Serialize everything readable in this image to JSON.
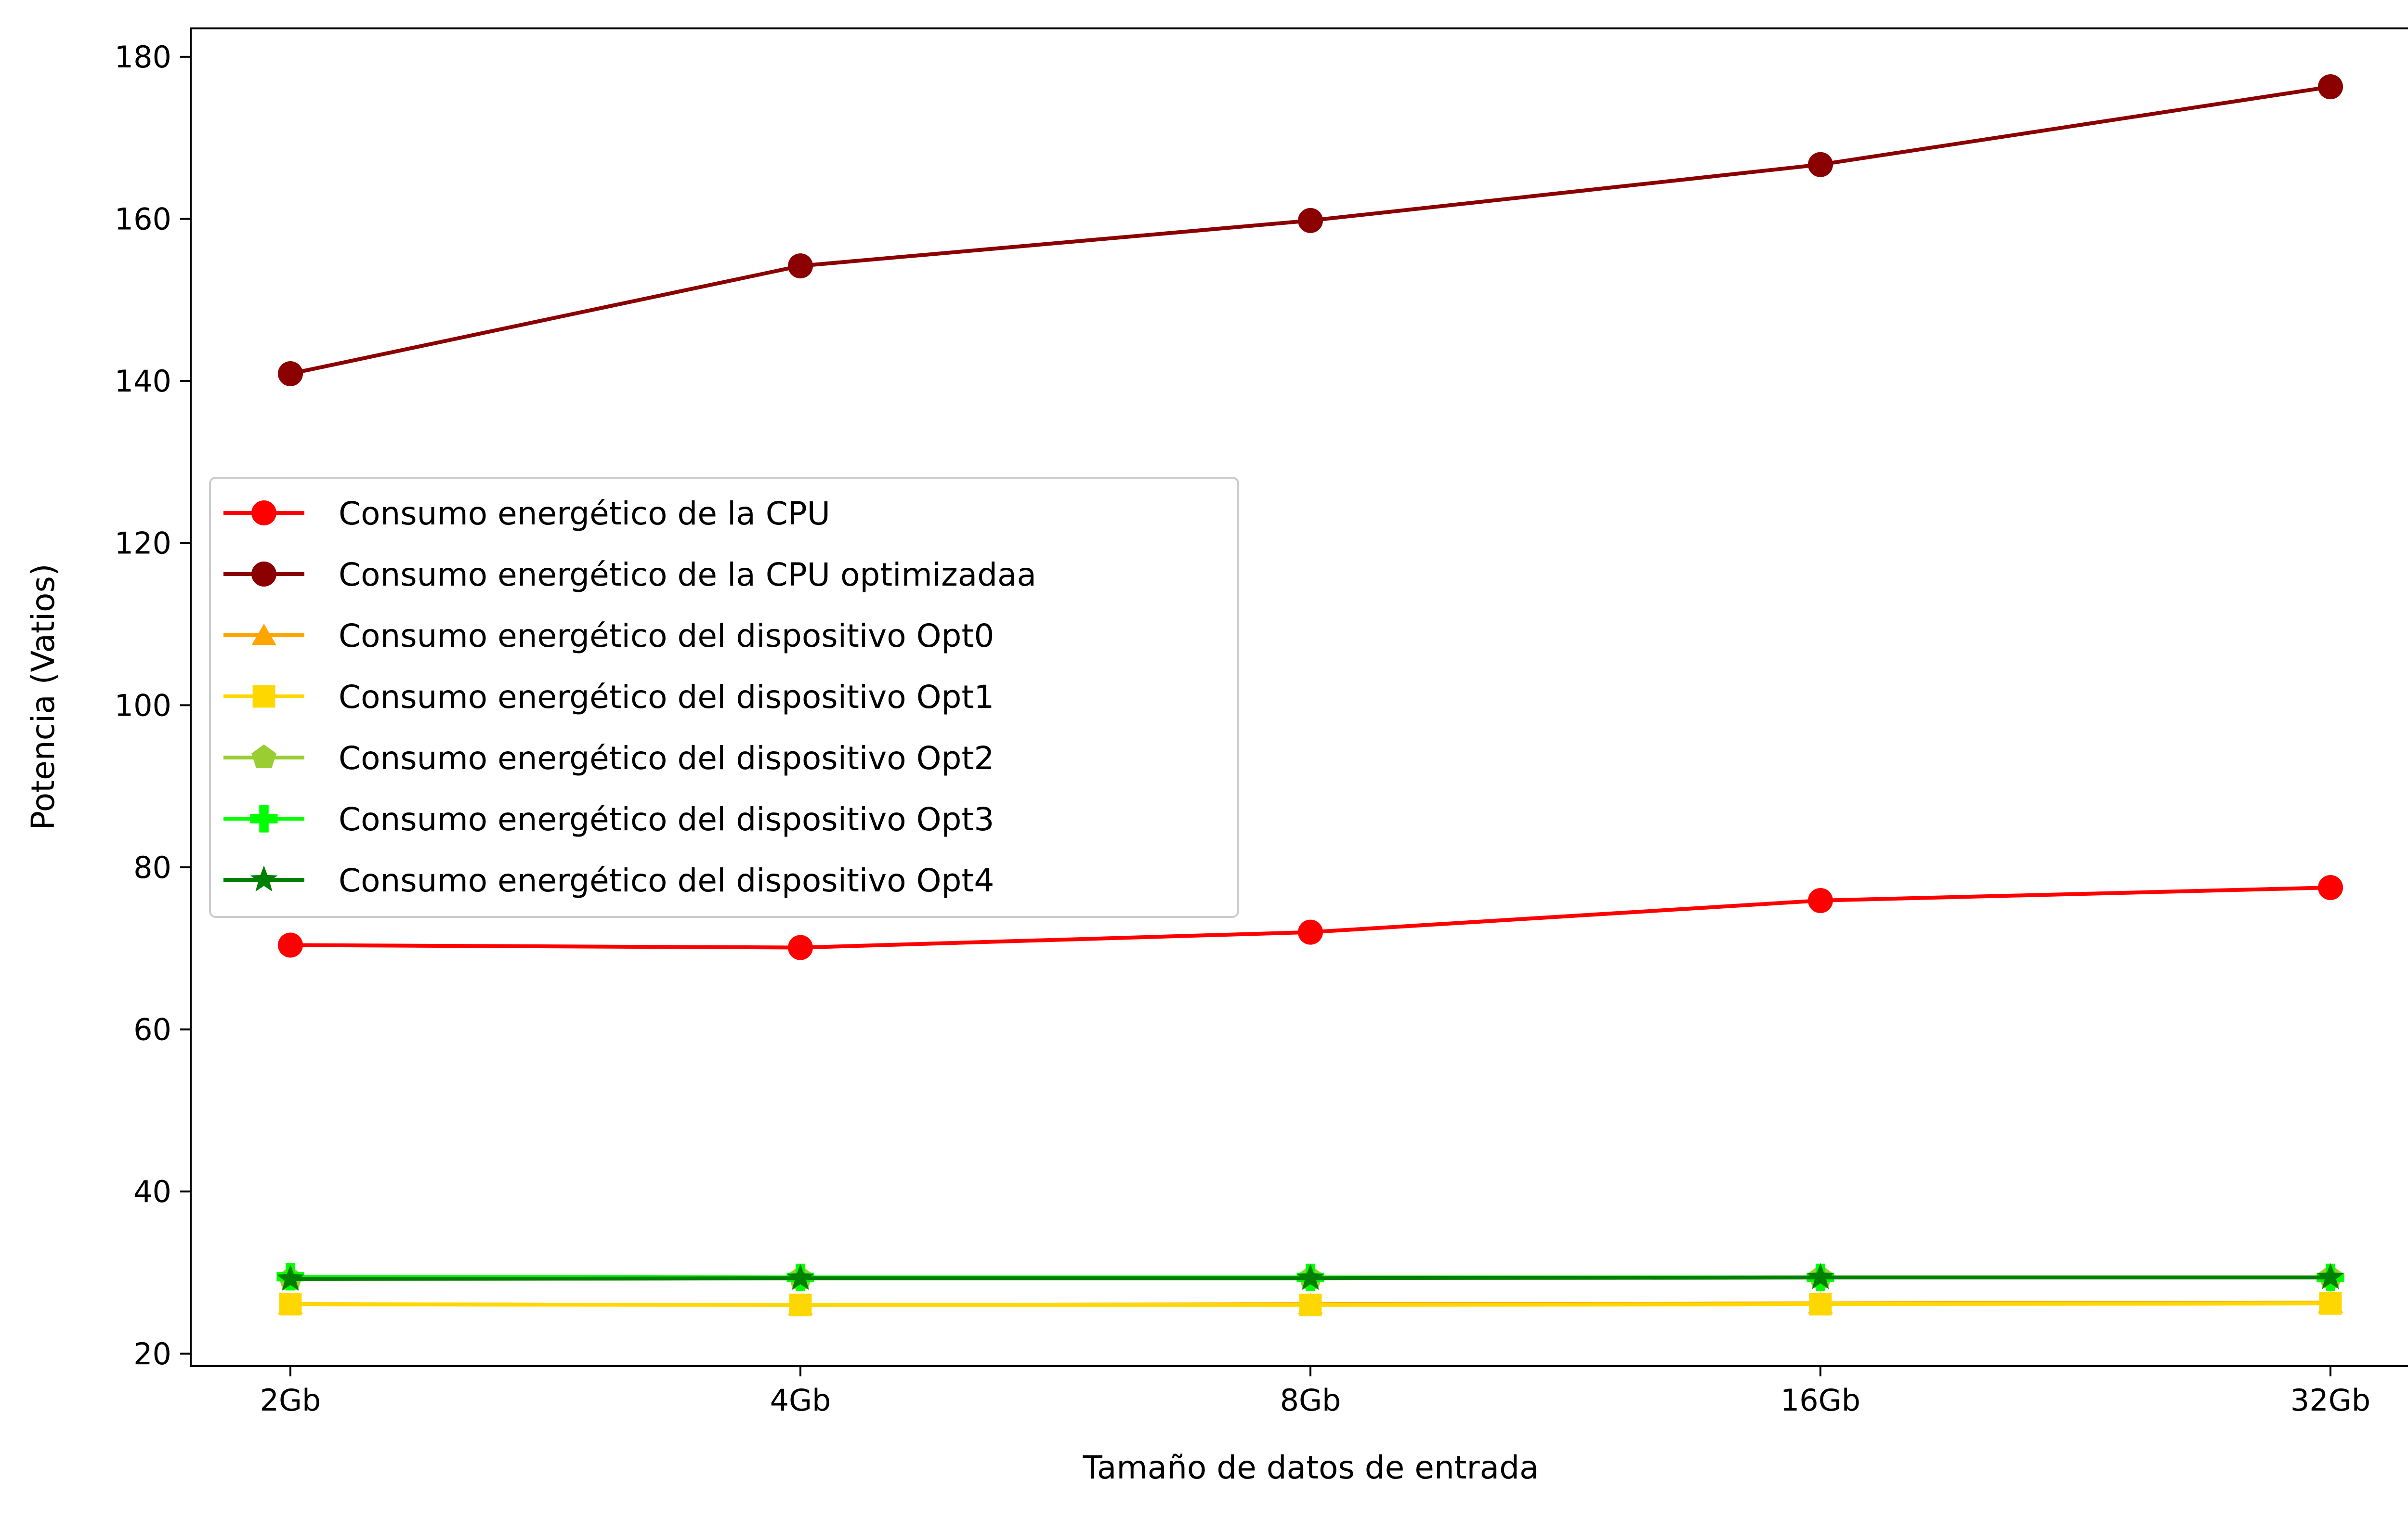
{
  "chart_data": {
    "type": "line",
    "title": "",
    "xlabel": "Tamaño de datos de entrada",
    "ylabel": "Potencia (Vatios)",
    "categories": [
      "2Gb",
      "4Gb",
      "8Gb",
      "16Gb",
      "32Gb"
    ],
    "ylim": [
      18.5,
      183.5
    ],
    "yticks": [
      20,
      40,
      60,
      80,
      100,
      120,
      140,
      160,
      180
    ],
    "grid": false,
    "legend_position": "center-left",
    "series": [
      {
        "name": "Consumo energético de la CPU",
        "color": "#ff0000",
        "marker": "circle",
        "values": [
          70.4,
          70.1,
          72.0,
          75.9,
          77.5
        ]
      },
      {
        "name": "Consumo energético de la CPU optimizadaa",
        "color": "#8b0000",
        "marker": "circle",
        "values": [
          140.9,
          154.2,
          159.8,
          166.7,
          176.3
        ]
      },
      {
        "name": "Consumo energético del dispositivo Opt0",
        "color": "#ffa500",
        "marker": "triangle",
        "values": [
          26.1,
          26.0,
          26.1,
          26.2,
          26.3
        ]
      },
      {
        "name": "Consumo energético del dispositivo Opt1",
        "color": "#ffd700",
        "marker": "square",
        "values": [
          26.1,
          26.0,
          26.0,
          26.1,
          26.2
        ]
      },
      {
        "name": "Consumo energético del dispositivo Opt2",
        "color": "#9acd32",
        "marker": "pentagon",
        "values": [
          29.2,
          29.3,
          29.3,
          29.4,
          29.4
        ]
      },
      {
        "name": "Consumo energético del dispositivo Opt3",
        "color": "#00ff00",
        "marker": "plus",
        "values": [
          29.5,
          29.4,
          29.4,
          29.4,
          29.4
        ]
      },
      {
        "name": "Consumo energético del dispositivo Opt4",
        "color": "#008000",
        "marker": "star",
        "values": [
          29.2,
          29.3,
          29.3,
          29.4,
          29.4
        ]
      }
    ]
  }
}
